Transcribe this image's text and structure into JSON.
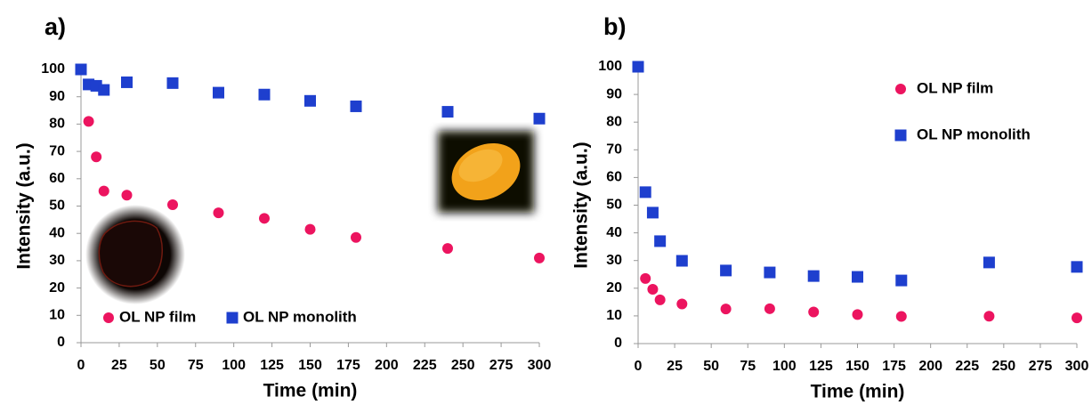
{
  "chart_data": [
    {
      "type": "scatter",
      "panel_label": "a)",
      "x_label": "Time (min)",
      "y_label": "Intensity (a.u.)",
      "xlim": [
        0,
        300
      ],
      "xticks": [
        0,
        25,
        50,
        75,
        100,
        125,
        150,
        175,
        200,
        225,
        250,
        275,
        300
      ],
      "ylim": [
        0,
        100
      ],
      "yticks": [
        0,
        10,
        20,
        30,
        40,
        50,
        60,
        70,
        80,
        90,
        100
      ],
      "legend": "bottom-left",
      "grid": false,
      "series": [
        {
          "name": "OL NP film",
          "color": "#ec145f",
          "marker": "circle",
          "x": [
            5,
            10,
            15,
            30,
            60,
            90,
            120,
            150,
            180,
            240,
            300
          ],
          "values": [
            81,
            68,
            55.5,
            54,
            50.5,
            47.5,
            45.5,
            41.5,
            38.5,
            34.5,
            31
          ]
        },
        {
          "name": "OL NP monolith",
          "color": "#1e3fce",
          "marker": "square",
          "x": [
            0,
            5,
            10,
            15,
            30,
            60,
            90,
            120,
            150,
            180,
            240,
            300
          ],
          "values": [
            100,
            94.5,
            94,
            92.5,
            95.3,
            95,
            91.5,
            90.8,
            88.5,
            86.5,
            84.5,
            82
          ]
        }
      ]
    },
    {
      "type": "scatter",
      "panel_label": "b)",
      "x_label": "Time (min)",
      "y_label": "Intensity (a.u.)",
      "xlim": [
        0,
        300
      ],
      "xticks": [
        0,
        25,
        50,
        75,
        100,
        125,
        150,
        175,
        200,
        225,
        250,
        275,
        300
      ],
      "ylim": [
        0,
        100
      ],
      "yticks": [
        0,
        10,
        20,
        30,
        40,
        50,
        60,
        70,
        80,
        90,
        100
      ],
      "legend": "upper-right",
      "grid": false,
      "series": [
        {
          "name": "OL NP film",
          "color": "#ec145f",
          "marker": "circle",
          "x": [
            5,
            10,
            15,
            30,
            60,
            90,
            120,
            150,
            180,
            240,
            300
          ],
          "values": [
            23.5,
            19.6,
            15.8,
            14.3,
            12.5,
            12.6,
            11.4,
            10.5,
            9.8,
            9.9,
            9.3
          ]
        },
        {
          "name": "OL NP monolith",
          "color": "#1e3fce",
          "marker": "square",
          "x": [
            0,
            5,
            10,
            15,
            30,
            60,
            90,
            120,
            150,
            180,
            240,
            300
          ],
          "values": [
            100,
            54.7,
            47.3,
            37,
            29.9,
            26.4,
            25.7,
            24.4,
            24.1,
            22.8,
            29.3,
            27.7
          ]
        }
      ]
    }
  ]
}
